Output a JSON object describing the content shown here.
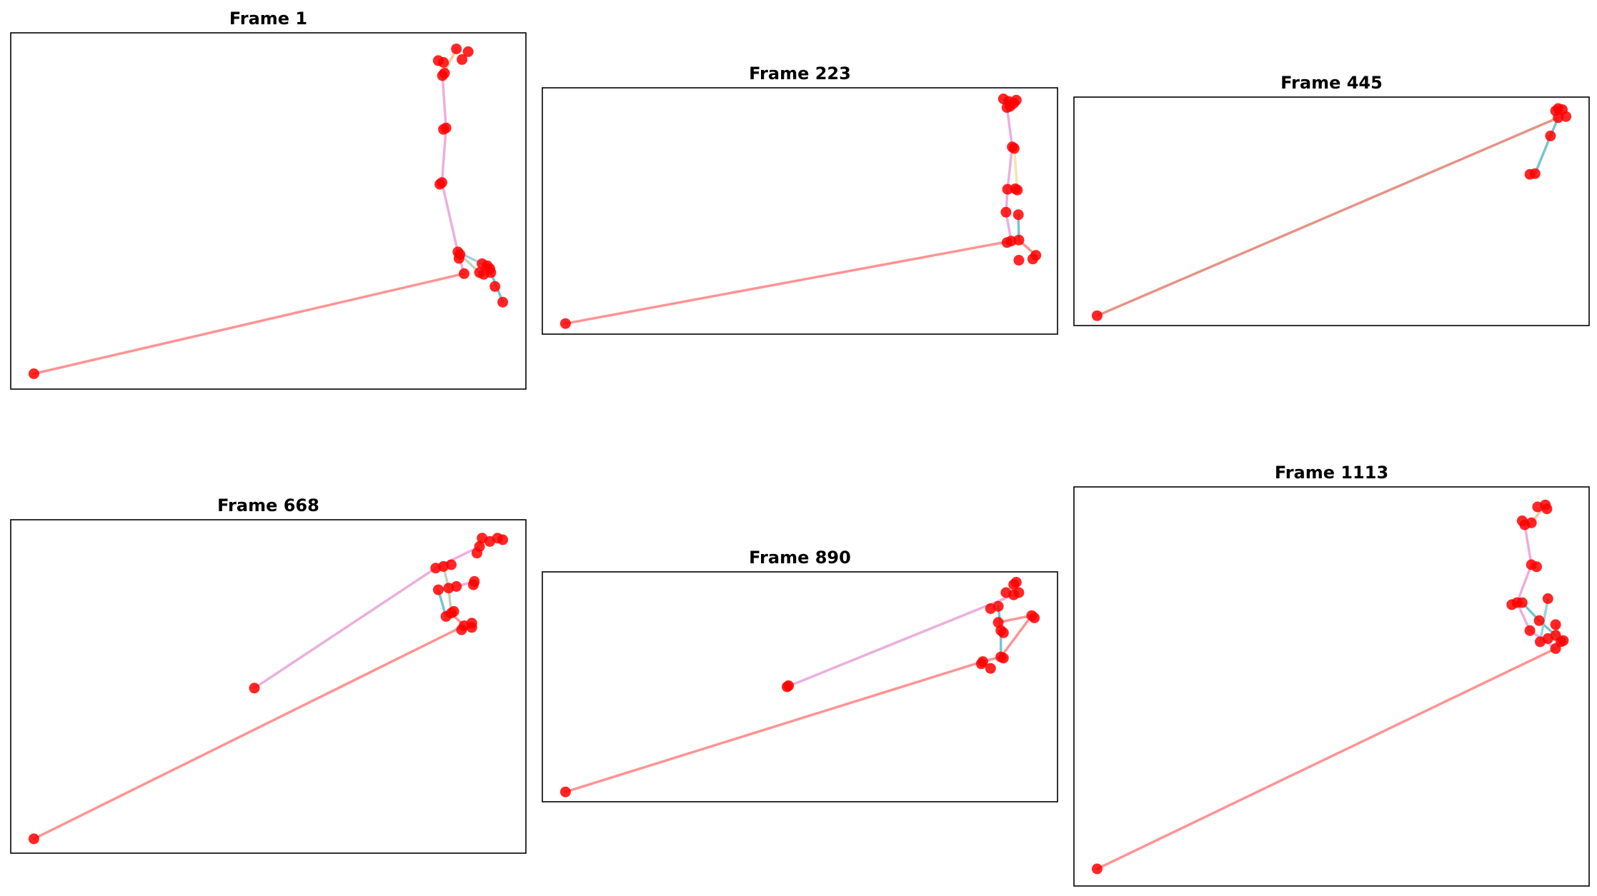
{
  "figure": {
    "panels": [
      {
        "title": "Frame 1"
      },
      {
        "title": "Frame 223"
      },
      {
        "title": "Frame 445"
      },
      {
        "title": "Frame 668"
      },
      {
        "title": "Frame 890"
      },
      {
        "title": "Frame 1113"
      }
    ]
  },
  "chart_data": [
    {
      "type": "scatter",
      "title": "Frame 1",
      "xlabel": "",
      "ylabel": "",
      "axes_visible": false,
      "grid": false,
      "xlim": [
        0,
        1
      ],
      "ylim": [
        0,
        1
      ],
      "point_color": "#ff0000",
      "points": [
        [
          0.865,
          0.955
        ],
        [
          0.888,
          0.947
        ],
        [
          0.83,
          0.922
        ],
        [
          0.84,
          0.917
        ],
        [
          0.876,
          0.925
        ],
        [
          0.842,
          0.887
        ],
        [
          0.838,
          0.88
        ],
        [
          0.845,
          0.733
        ],
        [
          0.84,
          0.729
        ],
        [
          0.837,
          0.58
        ],
        [
          0.833,
          0.575
        ],
        [
          0.868,
          0.385
        ],
        [
          0.872,
          0.378
        ],
        [
          0.87,
          0.367
        ],
        [
          0.915,
          0.352
        ],
        [
          0.925,
          0.346
        ],
        [
          0.93,
          0.338
        ],
        [
          0.91,
          0.327
        ],
        [
          0.88,
          0.324
        ],
        [
          0.918,
          0.322
        ],
        [
          0.932,
          0.327
        ],
        [
          0.94,
          0.288
        ],
        [
          0.955,
          0.244
        ],
        [
          0.045,
          0.043
        ]
      ],
      "edges": [
        {
          "points": [
            [
              0.045,
              0.043
            ],
            [
              0.88,
              0.324
            ]
          ],
          "color": "#ff8080"
        },
        {
          "points": [
            [
              0.88,
              0.324
            ],
            [
              0.868,
              0.385
            ],
            [
              0.837,
              0.58
            ],
            [
              0.845,
              0.733
            ],
            [
              0.838,
              0.88
            ]
          ],
          "color": "#e8a0d8"
        },
        {
          "points": [
            [
              0.838,
              0.88
            ],
            [
              0.865,
              0.955
            ]
          ],
          "color": "#f0c090"
        },
        {
          "points": [
            [
              0.868,
              0.385
            ],
            [
              0.915,
              0.352
            ],
            [
              0.93,
              0.338
            ]
          ],
          "color": "#90c8d8"
        },
        {
          "points": [
            [
              0.932,
              0.327
            ],
            [
              0.955,
              0.244
            ]
          ],
          "color": "#60b8d0"
        },
        {
          "points": [
            [
              0.872,
              0.378
            ],
            [
              0.91,
              0.327
            ]
          ],
          "color": "#b8c8b0"
        }
      ]
    },
    {
      "type": "scatter",
      "title": "Frame 223",
      "xlabel": "",
      "ylabel": "",
      "axes_visible": false,
      "grid": false,
      "xlim": [
        0,
        1
      ],
      "ylim": [
        0,
        1
      ],
      "point_color": "#ff0000",
      "points": [
        [
          0.895,
          0.955
        ],
        [
          0.92,
          0.95
        ],
        [
          0.905,
          0.945
        ],
        [
          0.915,
          0.937
        ],
        [
          0.908,
          0.925
        ],
        [
          0.902,
          0.92
        ],
        [
          0.912,
          0.76
        ],
        [
          0.916,
          0.754
        ],
        [
          0.903,
          0.588
        ],
        [
          0.918,
          0.59
        ],
        [
          0.922,
          0.585
        ],
        [
          0.9,
          0.495
        ],
        [
          0.924,
          0.485
        ],
        [
          0.902,
          0.372
        ],
        [
          0.91,
          0.378
        ],
        [
          0.925,
          0.382
        ],
        [
          0.958,
          0.32
        ],
        [
          0.952,
          0.305
        ],
        [
          0.925,
          0.3
        ],
        [
          0.045,
          0.043
        ]
      ],
      "edges": [
        {
          "points": [
            [
              0.045,
              0.043
            ],
            [
              0.91,
              0.378
            ]
          ],
          "color": "#ff8080"
        },
        {
          "points": [
            [
              0.91,
              0.378
            ],
            [
              0.9,
              0.495
            ],
            [
              0.903,
              0.588
            ],
            [
              0.912,
              0.76
            ],
            [
              0.902,
              0.92
            ]
          ],
          "color": "#e8a0d8"
        },
        {
          "points": [
            [
              0.916,
              0.754
            ],
            [
              0.922,
              0.585
            ]
          ],
          "color": "#f0e0a0"
        },
        {
          "points": [
            [
              0.924,
              0.485
            ],
            [
              0.925,
              0.382
            ]
          ],
          "color": "#60b8d0"
        },
        {
          "points": [
            [
              0.925,
              0.382
            ],
            [
              0.958,
              0.32
            ]
          ],
          "color": "#ff8080"
        },
        {
          "points": [
            [
              0.905,
              0.945
            ],
            [
              0.92,
              0.95
            ]
          ],
          "color": "#f0c090"
        }
      ]
    },
    {
      "type": "scatter",
      "title": "Frame 445",
      "xlabel": "",
      "ylabel": "",
      "axes_visible": false,
      "grid": false,
      "xlim": [
        0,
        1
      ],
      "ylim": [
        0,
        1
      ],
      "point_color": "#ff0000",
      "points": [
        [
          0.94,
          0.95
        ],
        [
          0.948,
          0.945
        ],
        [
          0.935,
          0.94
        ],
        [
          0.955,
          0.915
        ],
        [
          0.94,
          0.91
        ],
        [
          0.925,
          0.83
        ],
        [
          0.895,
          0.665
        ],
        [
          0.885,
          0.662
        ],
        [
          0.045,
          0.043
        ]
      ],
      "edges": [
        {
          "points": [
            [
              0.045,
              0.043
            ],
            [
              0.94,
              0.91
            ]
          ],
          "color": "#e08070"
        },
        {
          "points": [
            [
              0.94,
              0.91
            ],
            [
              0.925,
              0.83
            ],
            [
              0.895,
              0.665
            ]
          ],
          "color": "#60b8d0"
        }
      ]
    },
    {
      "type": "scatter",
      "title": "Frame 668",
      "xlabel": "",
      "ylabel": "",
      "axes_visible": false,
      "grid": false,
      "xlim": [
        0,
        1
      ],
      "ylim": [
        0,
        1
      ],
      "point_color": "#ff0000",
      "points": [
        [
          0.915,
          0.945
        ],
        [
          0.945,
          0.945
        ],
        [
          0.955,
          0.94
        ],
        [
          0.93,
          0.935
        ],
        [
          0.91,
          0.92
        ],
        [
          0.905,
          0.9
        ],
        [
          0.855,
          0.865
        ],
        [
          0.84,
          0.86
        ],
        [
          0.825,
          0.855
        ],
        [
          0.9,
          0.815
        ],
        [
          0.898,
          0.805
        ],
        [
          0.865,
          0.8
        ],
        [
          0.83,
          0.79
        ],
        [
          0.85,
          0.795
        ],
        [
          0.86,
          0.725
        ],
        [
          0.855,
          0.72
        ],
        [
          0.845,
          0.71
        ],
        [
          0.895,
          0.69
        ],
        [
          0.88,
          0.682
        ],
        [
          0.895,
          0.677
        ],
        [
          0.875,
          0.67
        ],
        [
          0.473,
          0.495
        ],
        [
          0.045,
          0.043
        ]
      ],
      "edges": [
        {
          "points": [
            [
              0.045,
              0.043
            ],
            [
              0.88,
              0.682
            ]
          ],
          "color": "#ff8080"
        },
        {
          "points": [
            [
              0.473,
              0.495
            ],
            [
              0.825,
              0.855
            ],
            [
              0.91,
              0.92
            ]
          ],
          "color": "#e8a0d8"
        },
        {
          "points": [
            [
              0.91,
              0.92
            ],
            [
              0.915,
              0.945
            ]
          ],
          "color": "#f0c090"
        },
        {
          "points": [
            [
              0.84,
              0.86
            ],
            [
              0.85,
              0.795
            ],
            [
              0.855,
              0.72
            ]
          ],
          "color": "#b8c8b0"
        },
        {
          "points": [
            [
              0.855,
              0.72
            ],
            [
              0.88,
              0.682
            ]
          ],
          "color": "#ff8080"
        },
        {
          "points": [
            [
              0.865,
              0.8
            ],
            [
              0.9,
              0.815
            ]
          ],
          "color": "#e8a0d8"
        },
        {
          "points": [
            [
              0.83,
              0.79
            ],
            [
              0.845,
              0.71
            ]
          ],
          "color": "#60b8d0"
        }
      ]
    },
    {
      "type": "scatter",
      "title": "Frame 890",
      "xlabel": "",
      "ylabel": "",
      "axes_visible": false,
      "grid": false,
      "xlim": [
        0,
        1
      ],
      "ylim": [
        0,
        1
      ],
      "point_color": "#ff0000",
      "points": [
        [
          0.92,
          0.955
        ],
        [
          0.915,
          0.945
        ],
        [
          0.9,
          0.91
        ],
        [
          0.925,
          0.91
        ],
        [
          0.915,
          0.9
        ],
        [
          0.885,
          0.85
        ],
        [
          0.87,
          0.84
        ],
        [
          0.95,
          0.81
        ],
        [
          0.955,
          0.8
        ],
        [
          0.885,
          0.78
        ],
        [
          0.89,
          0.745
        ],
        [
          0.895,
          0.735
        ],
        [
          0.895,
          0.625
        ],
        [
          0.89,
          0.63
        ],
        [
          0.855,
          0.61
        ],
        [
          0.852,
          0.6
        ],
        [
          0.87,
          0.58
        ],
        [
          0.475,
          0.5
        ],
        [
          0.478,
          0.505
        ],
        [
          0.045,
          0.043
        ]
      ],
      "edges": [
        {
          "points": [
            [
              0.045,
              0.043
            ],
            [
              0.855,
              0.61
            ]
          ],
          "color": "#ff8080"
        },
        {
          "points": [
            [
              0.475,
              0.5
            ],
            [
              0.915,
              0.9
            ]
          ],
          "color": "#e8a0d8"
        },
        {
          "points": [
            [
              0.915,
              0.9
            ],
            [
              0.92,
              0.955
            ]
          ],
          "color": "#f0e0a0"
        },
        {
          "points": [
            [
              0.855,
              0.61
            ],
            [
              0.89,
              0.63
            ],
            [
              0.95,
              0.81
            ],
            [
              0.885,
              0.78
            ]
          ],
          "color": "#ff8080"
        },
        {
          "points": [
            [
              0.89,
              0.63
            ],
            [
              0.89,
              0.745
            ],
            [
              0.885,
              0.85
            ]
          ],
          "color": "#60b8d0"
        }
      ]
    },
    {
      "type": "scatter",
      "title": "Frame 1113",
      "xlabel": "",
      "ylabel": "",
      "axes_visible": false,
      "grid": false,
      "xlim": [
        0,
        1
      ],
      "ylim": [
        0,
        1
      ],
      "point_color": "#ff0000",
      "points": [
        [
          0.915,
          0.955
        ],
        [
          0.918,
          0.945
        ],
        [
          0.9,
          0.95
        ],
        [
          0.87,
          0.915
        ],
        [
          0.875,
          0.905
        ],
        [
          0.888,
          0.91
        ],
        [
          0.888,
          0.805
        ],
        [
          0.898,
          0.8
        ],
        [
          0.87,
          0.71
        ],
        [
          0.85,
          0.705
        ],
        [
          0.86,
          0.71
        ],
        [
          0.92,
          0.72
        ],
        [
          0.903,
          0.665
        ],
        [
          0.935,
          0.655
        ],
        [
          0.885,
          0.64
        ],
        [
          0.92,
          0.62
        ],
        [
          0.905,
          0.612
        ],
        [
          0.935,
          0.628
        ],
        [
          0.945,
          0.612
        ],
        [
          0.95,
          0.615
        ],
        [
          0.935,
          0.595
        ],
        [
          0.045,
          0.043
        ]
      ],
      "edges": [
        {
          "points": [
            [
              0.045,
              0.043
            ],
            [
              0.935,
              0.595
            ]
          ],
          "color": "#ff8080"
        },
        {
          "points": [
            [
              0.935,
              0.595
            ],
            [
              0.885,
              0.64
            ],
            [
              0.86,
              0.71
            ],
            [
              0.888,
              0.805
            ],
            [
              0.875,
              0.905
            ]
          ],
          "color": "#e8a0d8"
        },
        {
          "points": [
            [
              0.888,
              0.91
            ],
            [
              0.915,
              0.955
            ]
          ],
          "color": "#f0c090"
        },
        {
          "points": [
            [
              0.87,
              0.71
            ],
            [
              0.903,
              0.665
            ],
            [
              0.935,
              0.628
            ]
          ],
          "color": "#60b8d0"
        },
        {
          "points": [
            [
              0.92,
              0.72
            ],
            [
              0.905,
              0.612
            ]
          ],
          "color": "#90c8d8"
        },
        {
          "points": [
            [
              0.935,
              0.655
            ],
            [
              0.945,
              0.612
            ]
          ],
          "color": "#b8c8b0"
        }
      ]
    }
  ]
}
